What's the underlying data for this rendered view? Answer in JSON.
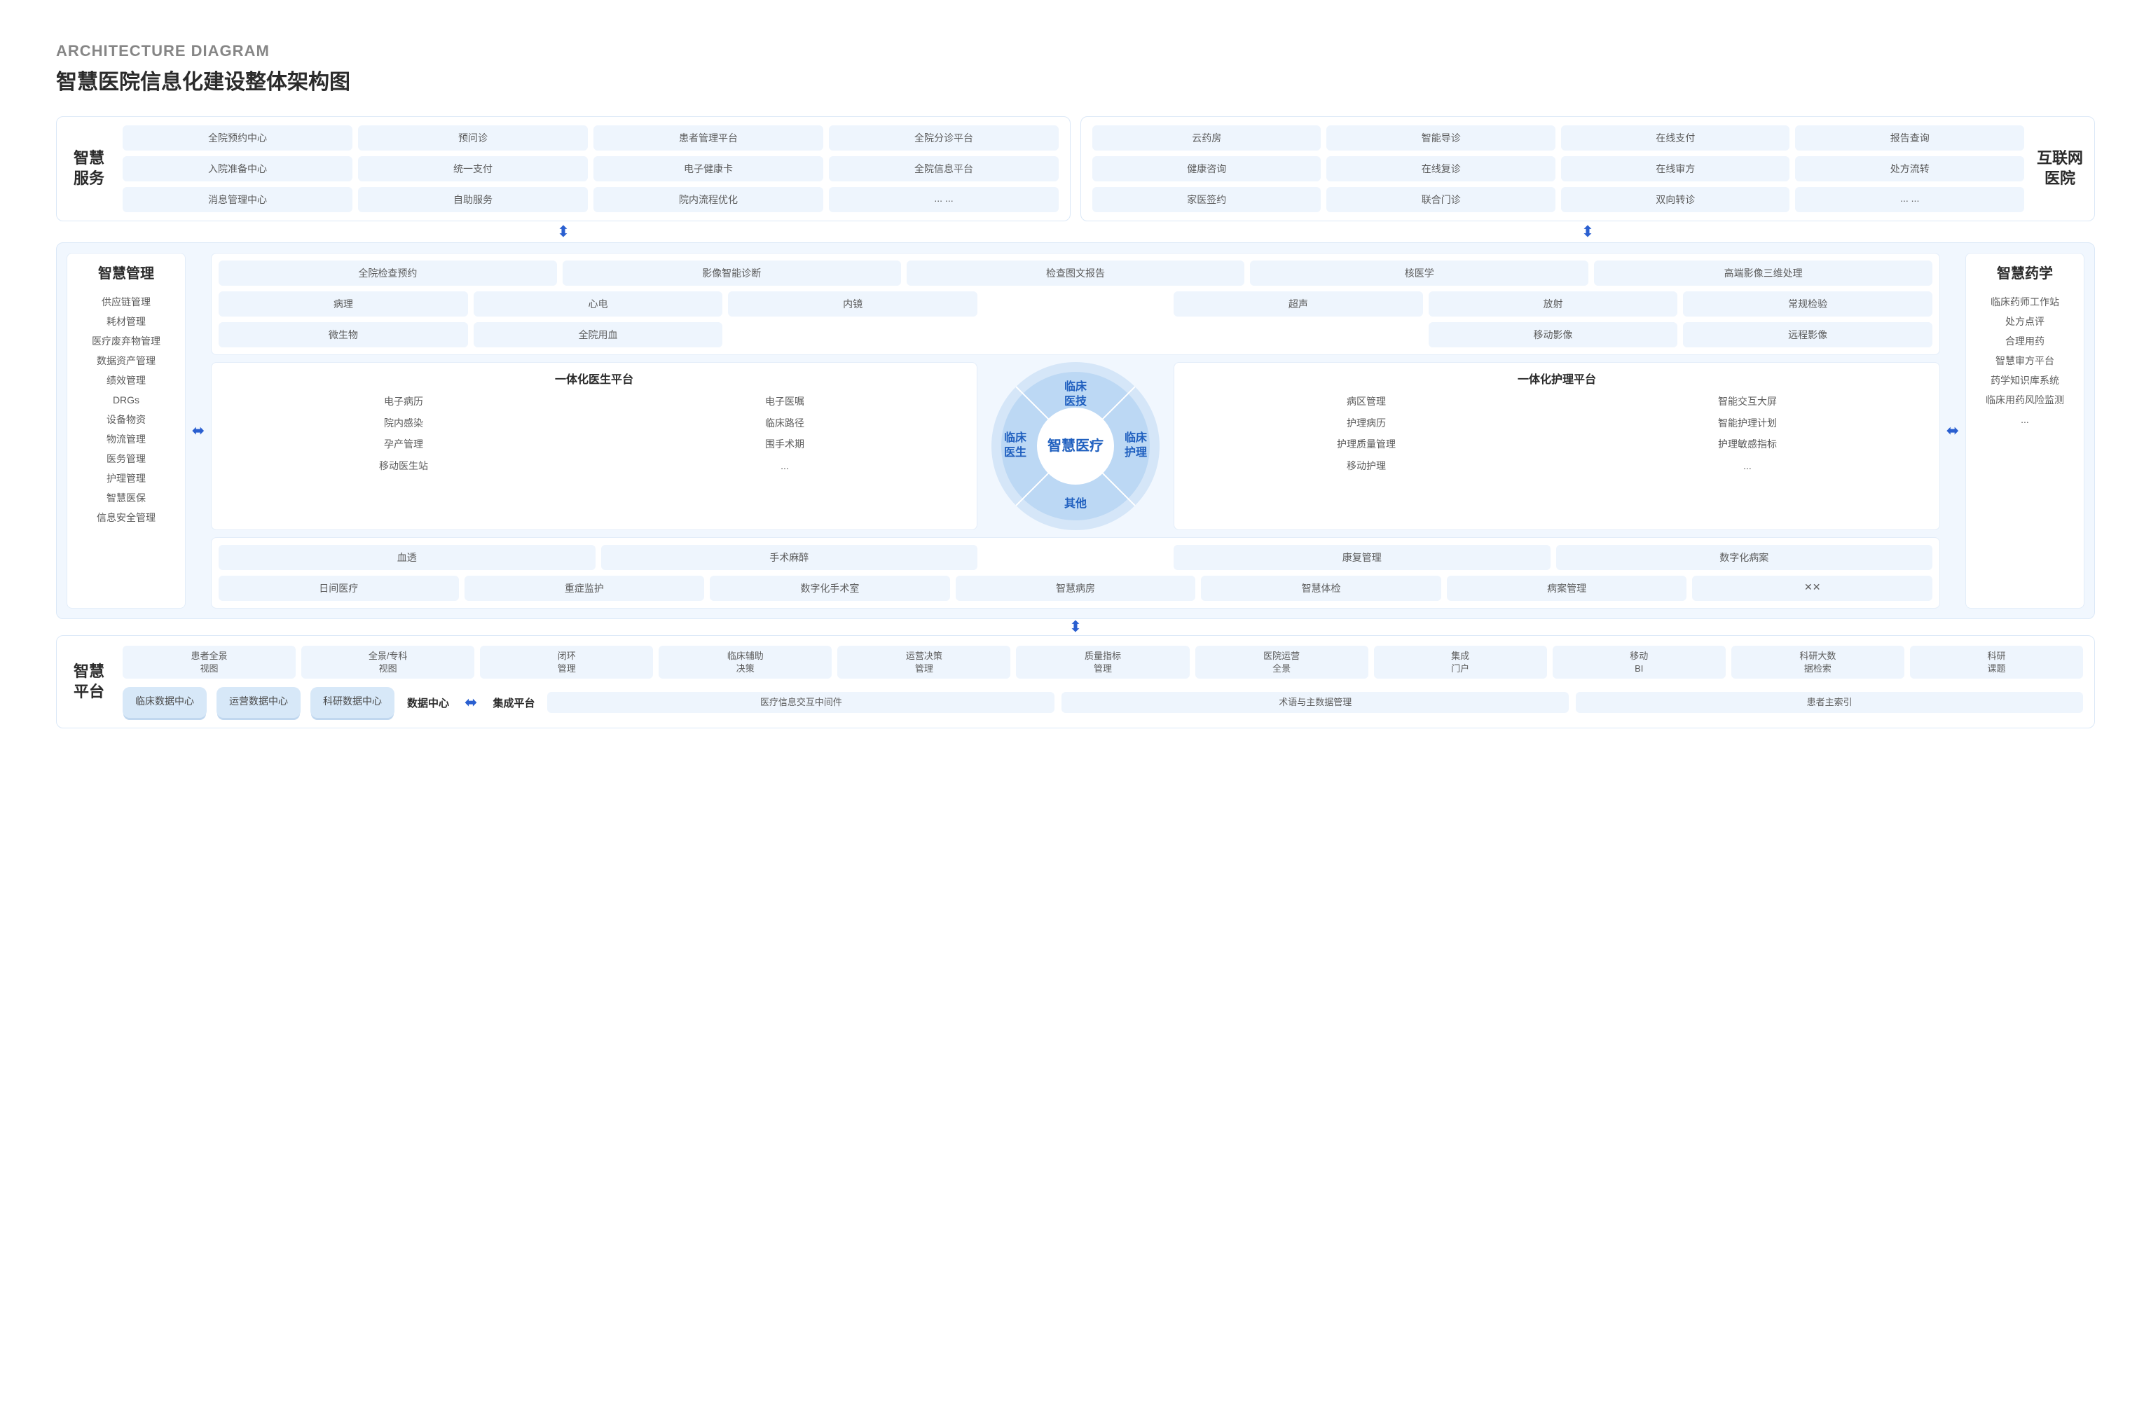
{
  "colors": {
    "chip_bg": "#eef5fd",
    "panel_border": "#dbe8f7",
    "tint_bg": "#f1f7fe",
    "text_muted": "#5b5b5b",
    "text_dark": "#2b2b2b",
    "accent": "#1f5fbf",
    "arrow": "#2a5fd0",
    "donut_outer": "#d5e6f8",
    "donut_inner": "#bcd8f4",
    "cyl_bg": "#d7e8f8",
    "cyl_shadow": "#c0d7ef"
  },
  "header": {
    "subtitle": "ARCHITECTURE DIAGRAM",
    "title": "智慧医院信息化建设整体架构图"
  },
  "top_left": {
    "title": "智慧\n服务",
    "rows": [
      [
        "全院预约中心",
        "预问诊",
        "患者管理平台",
        "全院分诊平台"
      ],
      [
        "入院准备中心",
        "统一支付",
        "电子健康卡",
        "全院信息平台"
      ],
      [
        "消息管理中心",
        "自助服务",
        "院内流程优化",
        "... ..."
      ]
    ]
  },
  "top_right": {
    "title": "互联网\n医院",
    "rows": [
      [
        "云药房",
        "智能导诊",
        "在线支付",
        "报告查询"
      ],
      [
        "健康咨询",
        "在线复诊",
        "在线审方",
        "处方流转"
      ],
      [
        "家医签约",
        "联合门诊",
        "双向转诊",
        "... ..."
      ]
    ]
  },
  "left_col": {
    "title": "智慧管理",
    "items": [
      "供应链管理",
      "耗材管理",
      "医疗废弃物管理",
      "数据资产管理",
      "绩效管理",
      "DRGs",
      "设备物资",
      "物流管理",
      "医务管理",
      "护理管理",
      "智慧医保",
      "信息安全管理"
    ]
  },
  "right_col": {
    "title": "智慧药学",
    "items": [
      "临床药师工作站",
      "处方点评",
      "合理用药",
      "智慧审方平台",
      "药学知识库系统",
      "临床用药风险监测",
      "..."
    ]
  },
  "clinical_tech": {
    "row1": [
      "全院检查预约",
      "影像智能诊断",
      "检查图文报告",
      "核医学",
      "高端影像三维处理"
    ],
    "row2_left": [
      "病理",
      "心电",
      "内镜"
    ],
    "row2_right": [
      "超声",
      "放射",
      "常规检验"
    ],
    "row3_left": [
      "微生物",
      "全院用血"
    ],
    "row3_right": [
      "移动影像",
      "远程影像"
    ]
  },
  "donut": {
    "center": "智慧\n医疗",
    "top": "临床\n医技",
    "bottom": "其他",
    "left": "临床\n医生",
    "right": "临床\n护理"
  },
  "doctor_platform": {
    "title": "一体化医生平台",
    "left": [
      "电子病历",
      "院内感染",
      "孕产管理",
      "移动医生站"
    ],
    "right": [
      "电子医嘱",
      "临床路径",
      "围手术期",
      "..."
    ]
  },
  "nurse_platform": {
    "title": "一体化护理平台",
    "left": [
      "病区管理",
      "护理病历",
      "护理质量管理",
      "移动护理"
    ],
    "right": [
      "智能交互大屏",
      "智能护理计划",
      "护理敏感指标",
      "..."
    ]
  },
  "other_band": {
    "row1_left": [
      "血透",
      "手术麻醉"
    ],
    "row1_right": [
      "康复管理",
      "数字化病案"
    ],
    "row2": [
      "日间医疗",
      "重症监护",
      "数字化手术室",
      "智慧病房",
      "智慧体检",
      "病案管理",
      "✕✕"
    ]
  },
  "platform": {
    "title": "智慧\n平台",
    "row1": [
      "患者全景\n视图",
      "全景/专科\n视图",
      "闭环\n管理",
      "临床辅助\n决策",
      "运营决策\n管理",
      "质量指标\n管理",
      "医院运营\n全景",
      "集成\n门户",
      "移动\nBI",
      "科研大数\n据检索",
      "科研\n课题"
    ],
    "cylinders": [
      "临床数据中心",
      "运营数据中心",
      "科研数据中心"
    ],
    "label_data_center": "数据中心",
    "label_integration": "集成平台",
    "integration_items": [
      "医疗信息交互中间件",
      "术语与主数据管理",
      "患者主索引"
    ]
  },
  "arrow_v": "⬍",
  "arrow_h": "⬌"
}
